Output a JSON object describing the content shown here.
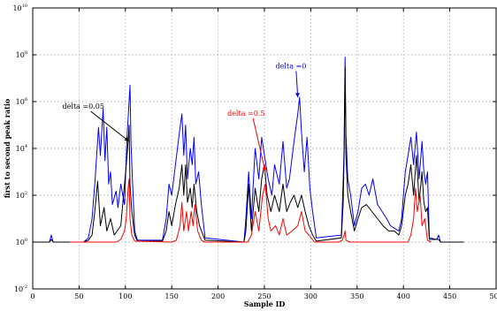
{
  "chart_data": {
    "type": "line",
    "xlabel": "Sample ID",
    "ylabel": "first to second peak ratio",
    "xlim": [
      0,
      500
    ],
    "ylim_log10": [
      -2,
      10
    ],
    "y_scale": "log",
    "grid": true,
    "x_ticks": [
      {
        "value": 0,
        "label": "0"
      },
      {
        "value": 50,
        "label": "50"
      },
      {
        "value": 100,
        "label": "100"
      },
      {
        "value": 150,
        "label": "150"
      },
      {
        "value": 200,
        "label": "200"
      },
      {
        "value": 250,
        "label": "250"
      },
      {
        "value": 300,
        "label": "300"
      },
      {
        "value": 350,
        "label": "350"
      },
      {
        "value": 400,
        "label": "400"
      },
      {
        "value": 450,
        "label": "450"
      },
      {
        "value": 500,
        "label": "500"
      }
    ],
    "y_ticks": [
      {
        "exp": -2,
        "base": "10",
        "sup": "-2"
      },
      {
        "exp": 0,
        "base": "10",
        "sup": "0"
      },
      {
        "exp": 2,
        "base": "10",
        "sup": "2"
      },
      {
        "exp": 4,
        "base": "10",
        "sup": "4"
      },
      {
        "exp": 6,
        "base": "10",
        "sup": "6"
      },
      {
        "exp": 8,
        "base": "10",
        "sup": "8"
      },
      {
        "exp": 10,
        "base": "10",
        "sup": "10"
      }
    ],
    "series": [
      {
        "name": "delta =0",
        "color": "#0000ff",
        "points": [
          [
            1,
            1
          ],
          [
            18,
            1
          ],
          [
            20,
            2
          ],
          [
            22,
            1
          ],
          [
            55,
            1
          ],
          [
            60,
            1.5
          ],
          [
            64,
            10
          ],
          [
            67,
            300
          ],
          [
            69,
            5000
          ],
          [
            71,
            80000
          ],
          [
            73,
            5000
          ],
          [
            76,
            500000
          ],
          [
            78,
            3000
          ],
          [
            80,
            80000
          ],
          [
            82,
            300
          ],
          [
            84,
            1000
          ],
          [
            86,
            40
          ],
          [
            90,
            150
          ],
          [
            92,
            30
          ],
          [
            95,
            300
          ],
          [
            99,
            40
          ],
          [
            102,
            50000
          ],
          [
            104,
            1000000
          ],
          [
            105,
            5000000
          ],
          [
            106,
            20000
          ],
          [
            107,
            2000
          ],
          [
            108,
            200
          ],
          [
            110,
            3
          ],
          [
            113,
            1.2
          ],
          [
            140,
            1.2
          ],
          [
            144,
            10
          ],
          [
            147,
            300
          ],
          [
            150,
            100
          ],
          [
            154,
            2000
          ],
          [
            158,
            40000
          ],
          [
            161,
            300000
          ],
          [
            163,
            5000
          ],
          [
            165,
            100000
          ],
          [
            167,
            500
          ],
          [
            170,
            10000
          ],
          [
            172,
            2000
          ],
          [
            174,
            30000
          ],
          [
            176,
            300
          ],
          [
            179,
            1000
          ],
          [
            182,
            40
          ],
          [
            186,
            1.5
          ],
          [
            228,
            1
          ],
          [
            230,
            10
          ],
          [
            233,
            1000
          ],
          [
            236,
            10
          ],
          [
            240,
            10000
          ],
          [
            244,
            500
          ],
          [
            247,
            30000
          ],
          [
            251,
            3000
          ],
          [
            254,
            500
          ],
          [
            258,
            100
          ],
          [
            261,
            2000
          ],
          [
            266,
            300
          ],
          [
            270,
            20000
          ],
          [
            274,
            200
          ],
          [
            277,
            500
          ],
          [
            282,
            20000
          ],
          [
            286,
            300000
          ],
          [
            288,
            1500000
          ],
          [
            290,
            50000
          ],
          [
            293,
            1000
          ],
          [
            296,
            30000
          ],
          [
            299,
            200
          ],
          [
            302,
            20
          ],
          [
            306,
            1.5
          ],
          [
            333,
            2
          ],
          [
            335,
            500
          ],
          [
            336,
            10000
          ],
          [
            337,
            80000000
          ],
          [
            338,
            40000
          ],
          [
            340,
            500
          ],
          [
            343,
            100
          ],
          [
            347,
            5
          ],
          [
            351,
            20
          ],
          [
            355,
            200
          ],
          [
            359,
            300
          ],
          [
            363,
            100
          ],
          [
            367,
            500
          ],
          [
            372,
            40
          ],
          [
            377,
            20
          ],
          [
            382,
            10
          ],
          [
            386,
            5
          ],
          [
            395,
            3
          ],
          [
            398,
            10
          ],
          [
            402,
            1000
          ],
          [
            405,
            5000
          ],
          [
            408,
            30000
          ],
          [
            411,
            2000
          ],
          [
            414,
            50000
          ],
          [
            417,
            500
          ],
          [
            420,
            20000
          ],
          [
            422,
            1000
          ],
          [
            424,
            300
          ],
          [
            426,
            1000
          ],
          [
            428,
            1.5
          ],
          [
            436,
            1.3
          ],
          [
            438,
            2
          ],
          [
            440,
            1
          ],
          [
            465,
            1
          ]
        ]
      },
      {
        "name": "delta =0.05",
        "color": "#000000",
        "points": [
          [
            1,
            1
          ],
          [
            18,
            1
          ],
          [
            20,
            1.3
          ],
          [
            22,
            1
          ],
          [
            55,
            1
          ],
          [
            60,
            1.2
          ],
          [
            64,
            2
          ],
          [
            67,
            20
          ],
          [
            70,
            400
          ],
          [
            73,
            5
          ],
          [
            77,
            30
          ],
          [
            80,
            3
          ],
          [
            84,
            10
          ],
          [
            88,
            2
          ],
          [
            95,
            5
          ],
          [
            99,
            300
          ],
          [
            101,
            2000
          ],
          [
            103,
            20000
          ],
          [
            104,
            100000
          ],
          [
            105,
            300
          ],
          [
            107,
            20
          ],
          [
            110,
            2
          ],
          [
            113,
            1.1
          ],
          [
            140,
            1.1
          ],
          [
            144,
            3
          ],
          [
            147,
            20
          ],
          [
            150,
            5
          ],
          [
            154,
            40
          ],
          [
            158,
            200
          ],
          [
            161,
            2000
          ],
          [
            163,
            100
          ],
          [
            165,
            2000
          ],
          [
            167,
            50
          ],
          [
            170,
            200
          ],
          [
            172,
            30
          ],
          [
            174,
            300
          ],
          [
            177,
            20
          ],
          [
            180,
            5
          ],
          [
            186,
            1.2
          ],
          [
            228,
            1
          ],
          [
            230,
            3
          ],
          [
            233,
            300
          ],
          [
            236,
            3
          ],
          [
            240,
            200
          ],
          [
            244,
            20
          ],
          [
            247,
            500
          ],
          [
            250,
            2000
          ],
          [
            253,
            100
          ],
          [
            257,
            20
          ],
          [
            261,
            100
          ],
          [
            266,
            20
          ],
          [
            270,
            300
          ],
          [
            274,
            20
          ],
          [
            278,
            50
          ],
          [
            282,
            100
          ],
          [
            286,
            30
          ],
          [
            290,
            100
          ],
          [
            294,
            20
          ],
          [
            298,
            5
          ],
          [
            302,
            2
          ],
          [
            306,
            1.1
          ],
          [
            333,
            1.5
          ],
          [
            335,
            50
          ],
          [
            336,
            5000
          ],
          [
            337,
            30000000
          ],
          [
            338,
            5000
          ],
          [
            340,
            100
          ],
          [
            343,
            20
          ],
          [
            347,
            3
          ],
          [
            351,
            10
          ],
          [
            355,
            30
          ],
          [
            360,
            40
          ],
          [
            366,
            20
          ],
          [
            372,
            10
          ],
          [
            378,
            5
          ],
          [
            384,
            3
          ],
          [
            390,
            3
          ],
          [
            395,
            2
          ],
          [
            398,
            5
          ],
          [
            402,
            100
          ],
          [
            405,
            300
          ],
          [
            408,
            2000
          ],
          [
            411,
            100
          ],
          [
            414,
            5000
          ],
          [
            417,
            50
          ],
          [
            420,
            1000
          ],
          [
            422,
            50
          ],
          [
            424,
            20
          ],
          [
            426,
            30
          ],
          [
            428,
            1.3
          ],
          [
            438,
            1.3
          ],
          [
            440,
            1
          ],
          [
            465,
            1
          ]
        ]
      },
      {
        "name": "delta =0.5",
        "color": "#ff0000",
        "points": [
          [
            40,
            1
          ],
          [
            90,
            1
          ],
          [
            95,
            1.3
          ],
          [
            99,
            3
          ],
          [
            101,
            10
          ],
          [
            103,
            200
          ],
          [
            104,
            500
          ],
          [
            105,
            10
          ],
          [
            107,
            2
          ],
          [
            110,
            1.1
          ],
          [
            150,
            1
          ],
          [
            155,
            1.2
          ],
          [
            159,
            5
          ],
          [
            161,
            50
          ],
          [
            163,
            3
          ],
          [
            166,
            20
          ],
          [
            168,
            3
          ],
          [
            171,
            20
          ],
          [
            173,
            5
          ],
          [
            175,
            40
          ],
          [
            178,
            3
          ],
          [
            182,
            1.2
          ],
          [
            186,
            1
          ],
          [
            232,
            1
          ],
          [
            236,
            2
          ],
          [
            240,
            20
          ],
          [
            244,
            3
          ],
          [
            248,
            100
          ],
          [
            251,
            300
          ],
          [
            254,
            10
          ],
          [
            257,
            3
          ],
          [
            262,
            5
          ],
          [
            266,
            2
          ],
          [
            270,
            10
          ],
          [
            274,
            2
          ],
          [
            280,
            3
          ],
          [
            286,
            5
          ],
          [
            290,
            20
          ],
          [
            294,
            3
          ],
          [
            298,
            2
          ],
          [
            304,
            1
          ],
          [
            330,
            1
          ],
          [
            334,
            1.2
          ],
          [
            336,
            2
          ],
          [
            337,
            3
          ],
          [
            338,
            1.2
          ],
          [
            342,
            1
          ],
          [
            405,
            1
          ],
          [
            408,
            2
          ],
          [
            411,
            10
          ],
          [
            413,
            200
          ],
          [
            415,
            20
          ],
          [
            418,
            100
          ],
          [
            420,
            5
          ],
          [
            423,
            10
          ],
          [
            426,
            1.2
          ],
          [
            430,
            1
          ]
        ]
      }
    ],
    "annotations": [
      {
        "text": "delta =0",
        "color": "#0000ff",
        "at": [
          262,
          26000000
        ],
        "target": [
          286,
          1500000
        ]
      },
      {
        "text": "delta =0.05",
        "color": "#000000",
        "at": [
          32,
          500000
        ],
        "target": [
          104,
          20000
        ]
      },
      {
        "text": "delta =0.5",
        "color": "#ff0000",
        "at": [
          210,
          250000
        ],
        "target": [
          251,
          1000
        ]
      }
    ]
  }
}
